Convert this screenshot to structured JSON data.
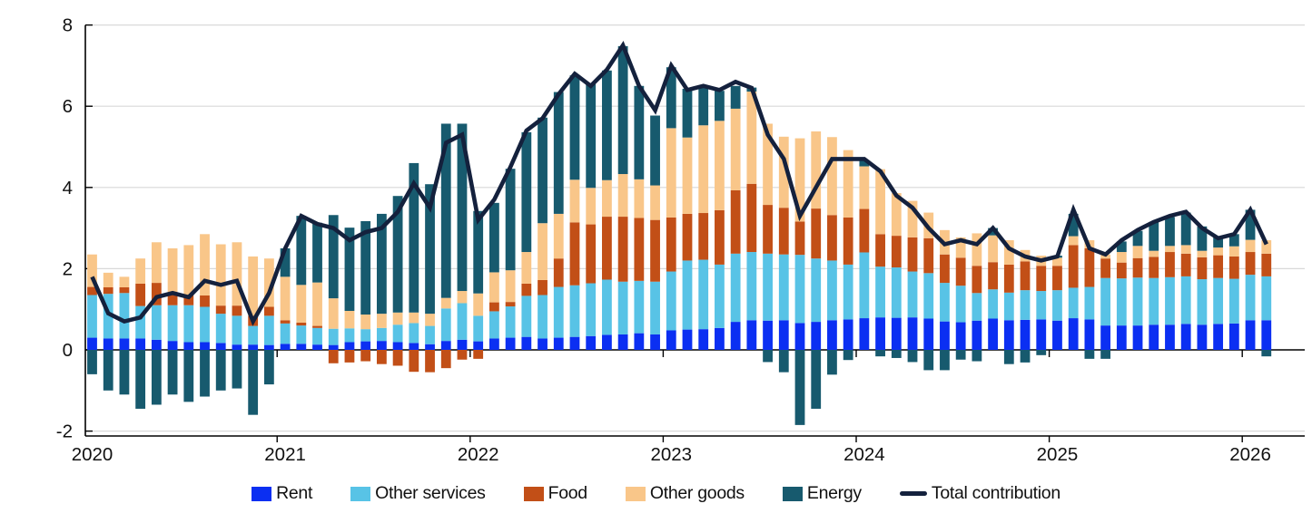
{
  "chart_data": {
    "type": "bar",
    "subtype": "stacked-bars-with-total-line",
    "title": "",
    "xlabel": "",
    "ylabel": "",
    "ylim": [
      -2,
      8
    ],
    "yticks": [
      8,
      6,
      4,
      2,
      0,
      -2
    ],
    "grid": "horizontal-light-gray",
    "legend_position": "bottom-center",
    "x_year_labels": [
      "2020",
      "2021",
      "2022",
      "2023",
      "2024",
      "2025",
      "2026"
    ],
    "months": [
      "2020-01",
      "2020-02",
      "2020-03",
      "2020-04",
      "2020-05",
      "2020-06",
      "2020-07",
      "2020-08",
      "2020-09",
      "2020-10",
      "2020-11",
      "2020-12",
      "2021-01",
      "2021-02",
      "2021-03",
      "2021-04",
      "2021-05",
      "2021-06",
      "2021-07",
      "2021-08",
      "2021-09",
      "2021-10",
      "2021-11",
      "2021-12",
      "2022-01",
      "2022-02",
      "2022-03",
      "2022-04",
      "2022-05",
      "2022-06",
      "2022-07",
      "2022-08",
      "2022-09",
      "2022-10",
      "2022-11",
      "2022-12",
      "2023-01",
      "2023-02",
      "2023-03",
      "2023-04",
      "2023-05",
      "2023-06",
      "2023-07",
      "2023-08",
      "2023-09",
      "2023-10",
      "2023-11",
      "2023-12",
      "2024-01",
      "2024-02",
      "2024-03",
      "2024-04",
      "2024-05",
      "2024-06",
      "2024-07",
      "2024-08",
      "2024-09",
      "2024-10",
      "2024-11",
      "2024-12",
      "2025-01",
      "2025-02",
      "2025-03",
      "2025-04",
      "2025-05",
      "2025-06",
      "2025-07",
      "2025-08",
      "2025-09",
      "2025-10",
      "2025-11",
      "2025-12",
      "2026-01",
      "2026-02"
    ],
    "series": [
      {
        "name": "Rent",
        "color": "#0b2ff2",
        "values": [
          0.3,
          0.28,
          0.28,
          0.28,
          0.25,
          0.22,
          0.19,
          0.19,
          0.17,
          0.13,
          0.13,
          0.12,
          0.15,
          0.15,
          0.13,
          0.12,
          0.19,
          0.21,
          0.22,
          0.19,
          0.17,
          0.14,
          0.22,
          0.25,
          0.21,
          0.28,
          0.3,
          0.32,
          0.28,
          0.3,
          0.32,
          0.34,
          0.37,
          0.38,
          0.41,
          0.38,
          0.48,
          0.5,
          0.51,
          0.54,
          0.69,
          0.73,
          0.72,
          0.73,
          0.66,
          0.69,
          0.73,
          0.75,
          0.78,
          0.8,
          0.79,
          0.8,
          0.77,
          0.7,
          0.68,
          0.72,
          0.77,
          0.73,
          0.74,
          0.75,
          0.72,
          0.78,
          0.75,
          0.6,
          0.6,
          0.6,
          0.62,
          0.62,
          0.64,
          0.62,
          0.64,
          0.65,
          0.73,
          0.73
        ]
      },
      {
        "name": "Other services",
        "color": "#58c3e6",
        "values": [
          1.05,
          1.1,
          1.12,
          0.8,
          0.85,
          0.88,
          0.91,
          0.87,
          0.72,
          0.71,
          0.46,
          0.72,
          0.5,
          0.45,
          0.41,
          0.4,
          0.34,
          0.3,
          0.32,
          0.43,
          0.49,
          0.45,
          0.8,
          0.9,
          0.63,
          0.67,
          0.77,
          1.01,
          1.07,
          1.25,
          1.27,
          1.3,
          1.36,
          1.3,
          1.29,
          1.3,
          1.45,
          1.7,
          1.71,
          1.56,
          1.68,
          1.68,
          1.65,
          1.62,
          1.68,
          1.56,
          1.47,
          1.35,
          1.62,
          1.25,
          1.24,
          1.13,
          1.12,
          0.95,
          0.9,
          0.68,
          0.72,
          0.68,
          0.73,
          0.7,
          0.75,
          0.75,
          0.8,
          1.17,
          1.16,
          1.18,
          1.15,
          1.17,
          1.17,
          1.12,
          1.13,
          1.1,
          1.12,
          1.08
        ]
      },
      {
        "name": "Food",
        "color": "#c24f17",
        "values": [
          0.2,
          0.16,
          0.14,
          0.55,
          0.55,
          0.3,
          0.25,
          0.28,
          0.2,
          0.25,
          0.25,
          0.22,
          0.08,
          0.07,
          0.05,
          -0.33,
          -0.31,
          -0.28,
          -0.35,
          -0.39,
          -0.54,
          -0.55,
          -0.45,
          -0.24,
          -0.22,
          0.22,
          0.11,
          0.3,
          0.37,
          0.7,
          1.55,
          1.45,
          1.55,
          1.6,
          1.55,
          1.52,
          1.33,
          1.15,
          1.15,
          1.34,
          1.56,
          1.68,
          1.2,
          1.15,
          0.82,
          1.23,
          1.12,
          1.16,
          1.07,
          0.8,
          0.78,
          0.84,
          0.86,
          0.7,
          0.69,
          0.67,
          0.67,
          0.69,
          0.71,
          0.62,
          0.6,
          1.05,
          0.95,
          0.48,
          0.39,
          0.48,
          0.52,
          0.62,
          0.56,
          0.54,
          0.56,
          0.55,
          0.56,
          0.56
        ]
      },
      {
        "name": "Other goods",
        "color": "#f9c689",
        "values": [
          0.8,
          0.36,
          0.26,
          0.62,
          1.0,
          1.1,
          1.23,
          1.51,
          1.51,
          1.56,
          1.46,
          1.19,
          1.07,
          0.93,
          1.07,
          0.75,
          0.43,
          0.36,
          0.35,
          0.3,
          0.26,
          0.3,
          0.26,
          0.3,
          0.55,
          0.74,
          0.78,
          0.78,
          1.4,
          1.1,
          1.05,
          0.9,
          0.9,
          1.05,
          0.95,
          0.85,
          2.2,
          1.88,
          2.16,
          2.2,
          2.01,
          2.27,
          2.0,
          1.75,
          2.05,
          1.9,
          1.92,
          1.66,
          1.05,
          1.6,
          1.05,
          0.9,
          0.63,
          0.6,
          0.5,
          0.8,
          0.66,
          0.6,
          0.28,
          0.25,
          0.2,
          0.22,
          0.2,
          0.1,
          0.26,
          0.3,
          0.15,
          0.15,
          0.21,
          0.16,
          0.19,
          0.25,
          0.3,
          0.33
        ]
      },
      {
        "name": "Energy",
        "color": "#175a6e",
        "values": [
          -0.6,
          -1.0,
          -1.1,
          -1.45,
          -1.35,
          -1.1,
          -1.28,
          -1.15,
          -1.0,
          -0.95,
          -1.6,
          -0.85,
          0.7,
          1.7,
          1.47,
          2.05,
          2.05,
          2.3,
          2.46,
          2.87,
          3.68,
          3.19,
          4.29,
          4.12,
          2.03,
          1.71,
          2.5,
          2.95,
          2.6,
          3.0,
          2.57,
          2.55,
          2.7,
          3.15,
          2.3,
          1.72,
          1.5,
          1.2,
          0.97,
          0.74,
          0.56,
          0.1,
          -0.3,
          -0.55,
          -1.85,
          -1.45,
          -0.61,
          -0.25,
          0.15,
          -0.16,
          -0.2,
          -0.3,
          -0.5,
          -0.5,
          -0.24,
          -0.28,
          0.18,
          -0.35,
          -0.31,
          -0.13,
          0.05,
          0.55,
          -0.22,
          -0.22,
          0.26,
          0.37,
          0.71,
          0.71,
          0.8,
          0.6,
          0.25,
          0.3,
          0.74,
          -0.16
        ]
      }
    ],
    "line": {
      "name": "Total contribution",
      "color": "#14213d",
      "values": [
        1.8,
        0.9,
        0.7,
        0.8,
        1.3,
        1.4,
        1.3,
        1.7,
        1.6,
        1.7,
        0.7,
        1.4,
        2.5,
        3.3,
        3.1,
        3.0,
        2.7,
        2.9,
        3.0,
        3.4,
        4.1,
        3.5,
        5.1,
        5.3,
        3.2,
        3.7,
        4.5,
        5.4,
        5.7,
        6.3,
        6.8,
        6.5,
        6.9,
        7.5,
        6.5,
        5.9,
        7.0,
        6.4,
        6.5,
        6.4,
        6.6,
        6.45,
        5.3,
        4.7,
        3.3,
        4.0,
        4.7,
        4.7,
        4.7,
        4.4,
        3.8,
        3.5,
        3.0,
        2.6,
        2.7,
        2.6,
        3.0,
        2.5,
        2.3,
        2.2,
        2.3,
        3.45,
        2.5,
        2.35,
        2.7,
        2.95,
        3.15,
        3.3,
        3.4,
        3.0,
        2.75,
        2.85,
        3.45,
        2.6
      ]
    }
  },
  "legend": {
    "items": [
      "Rent",
      "Other services",
      "Food",
      "Other goods",
      "Energy",
      "Total contribution"
    ]
  },
  "colors": {
    "gridline": "#d9d9d9",
    "axis": "#000000",
    "text": "#111111",
    "background": "#ffffff"
  }
}
